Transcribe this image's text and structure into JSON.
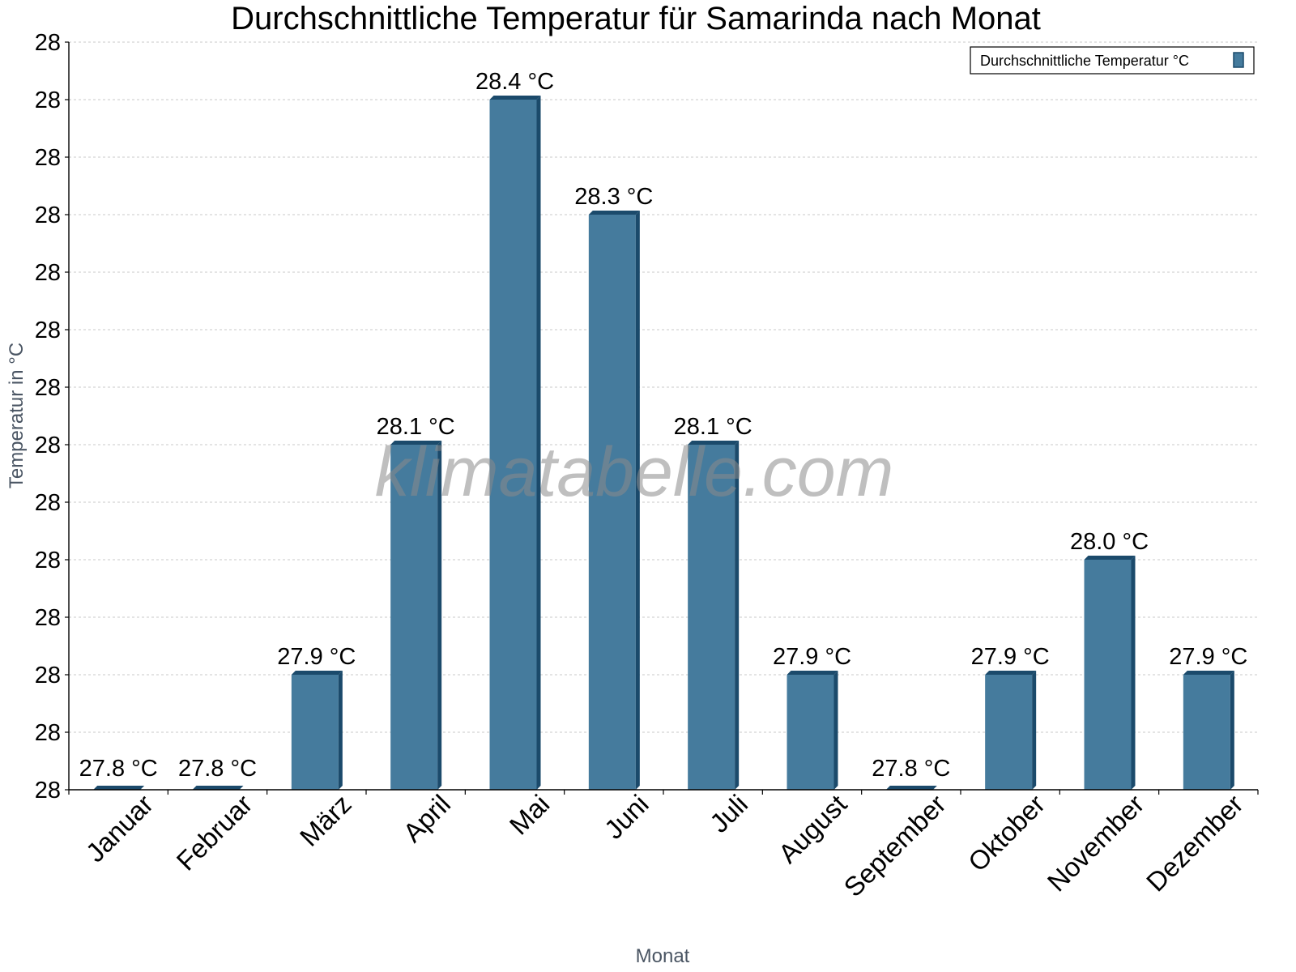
{
  "chart_data": {
    "type": "bar",
    "title": "Durchschnittliche Temperatur für Samarinda nach Monat",
    "xlabel": "Monat",
    "ylabel": "Temperatur in °C",
    "categories": [
      "Januar",
      "Februar",
      "März",
      "April",
      "Mai",
      "Juni",
      "Juli",
      "August",
      "September",
      "Oktober",
      "November",
      "Dezember"
    ],
    "series": [
      {
        "name": "Durchschnittliche Temperatur °C",
        "values": [
          27.8,
          27.8,
          27.9,
          28.1,
          28.4,
          28.3,
          28.1,
          27.9,
          27.8,
          27.9,
          28.0,
          27.9
        ],
        "labels": [
          "27.8 °C",
          "27.8 °C",
          "27.9 °C",
          "28.1 °C",
          "28.4 °C",
          "28.3 °C",
          "28.1 °C",
          "27.9 °C",
          "27.8 °C",
          "27.9 °C",
          "28.0 °C",
          "27.9 °C"
        ]
      }
    ],
    "yticks": [
      "28",
      "28",
      "28",
      "28",
      "28",
      "28",
      "28",
      "28",
      "28",
      "28",
      "28",
      "28",
      "28",
      "28"
    ],
    "ylim": [
      27.8,
      28.45
    ],
    "grid": true,
    "legend_position": "top-right",
    "watermark": "klimatabelle.com",
    "colors": {
      "bar_face": "#457b9d",
      "bar_edge": "#1b4a6b",
      "grid": "#c8c8c8",
      "axis": "#000000",
      "axis_title": "#4a5563"
    }
  }
}
